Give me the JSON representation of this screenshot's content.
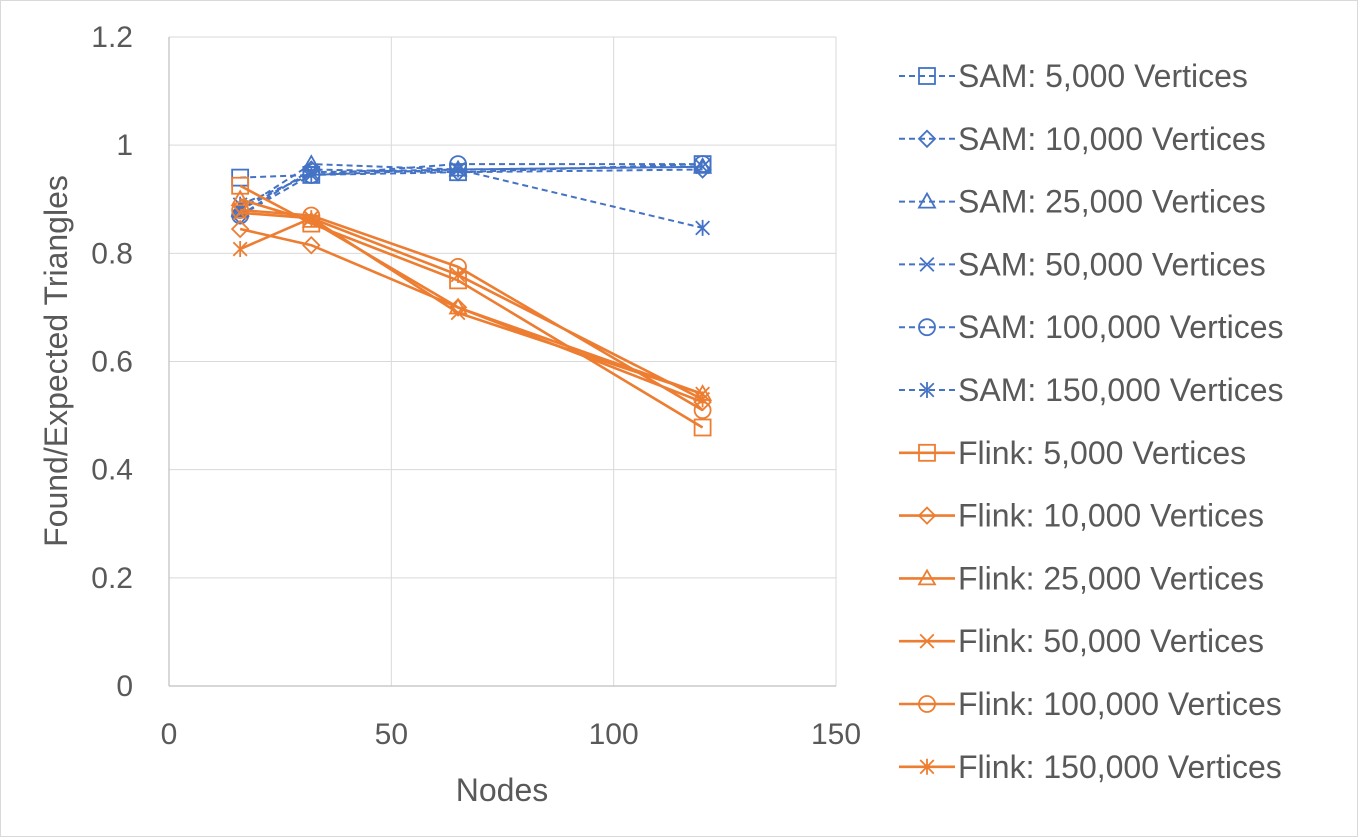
{
  "chart_data": {
    "type": "line",
    "title": "",
    "xlabel": "Nodes",
    "ylabel": "Found/Expected Triangles",
    "xlim": [
      0,
      150
    ],
    "ylim": [
      0,
      1.2
    ],
    "xticks": [
      0,
      50,
      100,
      150
    ],
    "yticks": [
      0,
      0.2,
      0.4,
      0.6,
      0.8,
      1,
      1.2
    ],
    "xtick_labels": [
      "0",
      "50",
      "100",
      "150"
    ],
    "ytick_labels": [
      "0",
      "0.2",
      "0.4",
      "0.6",
      "0.8",
      "1",
      "1.2"
    ],
    "grid": true,
    "legend_position": "right",
    "x": [
      16,
      32,
      65,
      120
    ],
    "series": [
      {
        "name": "SAM: 5,000 Vertices",
        "values": [
          0.94,
          0.945,
          0.95,
          0.965
        ],
        "color": "#4472C4",
        "marker": "square",
        "dash": true
      },
      {
        "name": "SAM: 10,000 Vertices",
        "values": [
          0.87,
          0.955,
          0.95,
          0.955
        ],
        "color": "#4472C4",
        "marker": "diamond",
        "dash": true
      },
      {
        "name": "SAM: 25,000 Vertices",
        "values": [
          0.88,
          0.965,
          0.955,
          0.96
        ],
        "color": "#4472C4",
        "marker": "triangle",
        "dash": true
      },
      {
        "name": "SAM: 50,000 Vertices",
        "values": [
          0.88,
          0.95,
          0.955,
          0.96
        ],
        "color": "#4472C4",
        "marker": "x",
        "dash": true
      },
      {
        "name": "SAM: 100,000 Vertices",
        "values": [
          0.87,
          0.945,
          0.965,
          0.965
        ],
        "color": "#4472C4",
        "marker": "circle",
        "dash": true
      },
      {
        "name": "SAM: 150,000 Vertices",
        "values": [
          0.89,
          0.945,
          0.955,
          0.847
        ],
        "color": "#4472C4",
        "marker": "asterisk",
        "dash": true
      },
      {
        "name": "Flink: 5,000 Vertices",
        "values": [
          0.925,
          0.855,
          0.75,
          0.478
        ],
        "color": "#ED7D31",
        "marker": "square",
        "dash": false
      },
      {
        "name": "Flink: 10,000 Vertices",
        "values": [
          0.845,
          0.815,
          0.7,
          0.525
        ],
        "color": "#ED7D31",
        "marker": "diamond",
        "dash": false
      },
      {
        "name": "Flink: 25,000 Vertices",
        "values": [
          0.9,
          0.86,
          0.7,
          0.54
        ],
        "color": "#ED7D31",
        "marker": "triangle",
        "dash": false
      },
      {
        "name": "Flink: 50,000 Vertices",
        "values": [
          0.875,
          0.865,
          0.69,
          0.54
        ],
        "color": "#ED7D31",
        "marker": "x",
        "dash": false
      },
      {
        "name": "Flink: 100,000 Vertices",
        "values": [
          0.88,
          0.87,
          0.775,
          0.51
        ],
        "color": "#ED7D31",
        "marker": "circle",
        "dash": false
      },
      {
        "name": "Flink: 150,000 Vertices",
        "values": [
          0.808,
          0.865,
          0.76,
          0.53
        ],
        "color": "#ED7D31",
        "marker": "asterisk",
        "dash": false
      }
    ]
  }
}
